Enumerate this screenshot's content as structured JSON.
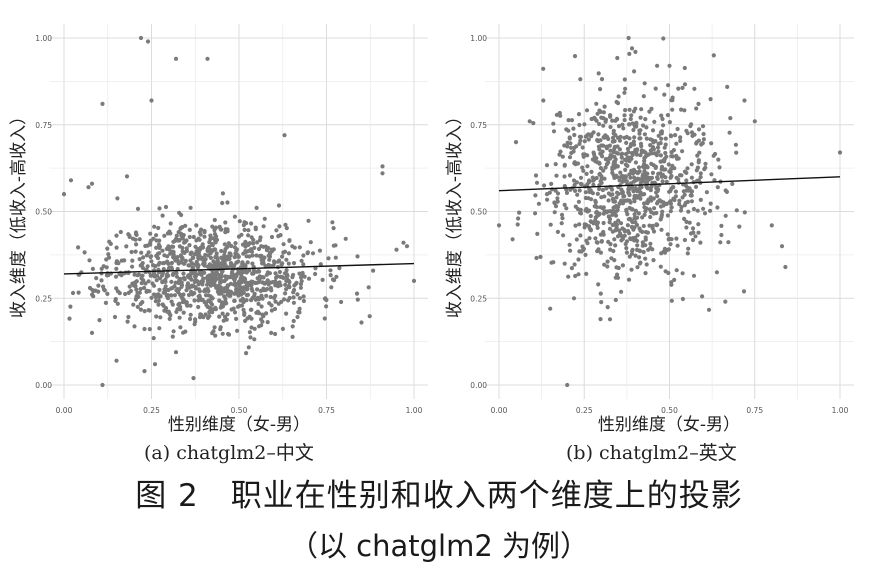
{
  "figure": {
    "title": "图 2　职业在性别和收入两个维度上的投影",
    "note": "（以 chatglm2 为例）"
  },
  "chart_data": [
    {
      "type": "scatter",
      "caption": "(a) chatglm2–中文",
      "xlabel": "性别维度（女-男）",
      "ylabel": "收入维度（低收入-高收入）",
      "xlim": [
        0,
        1
      ],
      "ylim": [
        0,
        1
      ],
      "xticks": [
        "0.00",
        "0.25",
        "0.50",
        "0.75",
        "1.00"
      ],
      "yticks": [
        "0.00",
        "0.25",
        "0.50",
        "0.75",
        "1.00"
      ],
      "grid": true,
      "point_color": "#7a7a7a",
      "trend_line": {
        "x": [
          0.0,
          1.0
        ],
        "y": [
          0.32,
          0.35
        ]
      },
      "cloud": {
        "n": 1150,
        "x_center": 0.42,
        "x_spread": 0.15,
        "y_center": 0.32,
        "y_spread": 0.075,
        "seed": 11
      },
      "points": [
        {
          "x": 0.22,
          "y": 1.0
        },
        {
          "x": 0.24,
          "y": 0.99
        },
        {
          "x": 0.32,
          "y": 0.94
        },
        {
          "x": 0.41,
          "y": 0.94
        },
        {
          "x": 0.11,
          "y": 0.81
        },
        {
          "x": 0.25,
          "y": 0.82
        },
        {
          "x": 0.63,
          "y": 0.72
        },
        {
          "x": 0.0,
          "y": 0.55
        },
        {
          "x": 0.02,
          "y": 0.59
        },
        {
          "x": 0.07,
          "y": 0.57
        },
        {
          "x": 0.08,
          "y": 0.58
        },
        {
          "x": 0.91,
          "y": 0.63
        },
        {
          "x": 0.91,
          "y": 0.61
        },
        {
          "x": 0.97,
          "y": 0.41
        },
        {
          "x": 0.98,
          "y": 0.4
        },
        {
          "x": 0.95,
          "y": 0.39
        },
        {
          "x": 1.0,
          "y": 0.3
        },
        {
          "x": 0.11,
          "y": 0.0
        },
        {
          "x": 0.23,
          "y": 0.04
        },
        {
          "x": 0.37,
          "y": 0.02
        },
        {
          "x": 0.15,
          "y": 0.07
        },
        {
          "x": 0.26,
          "y": 0.06
        },
        {
          "x": 0.08,
          "y": 0.15
        },
        {
          "x": 0.85,
          "y": 0.18
        }
      ]
    },
    {
      "type": "scatter",
      "caption": "(b) chatglm2–英文",
      "xlabel": "性别维度（女-男）",
      "ylabel": "收入维度（低收入-高收入）",
      "xlim": [
        0,
        1
      ],
      "ylim": [
        0,
        1
      ],
      "xticks": [
        "0.00",
        "0.25",
        "0.50",
        "0.75",
        "1.00"
      ],
      "yticks": [
        "0.00",
        "0.25",
        "0.50",
        "0.75",
        "1.00"
      ],
      "grid": true,
      "point_color": "#7a7a7a",
      "trend_line": {
        "x": [
          0.0,
          1.0
        ],
        "y": [
          0.56,
          0.6
        ]
      },
      "cloud": {
        "n": 1000,
        "x_center": 0.38,
        "x_spread": 0.12,
        "y_center": 0.58,
        "y_spread": 0.13,
        "seed": 29
      },
      "points": [
        {
          "x": 0.38,
          "y": 1.0
        },
        {
          "x": 0.39,
          "y": 0.97
        },
        {
          "x": 0.4,
          "y": 0.96
        },
        {
          "x": 0.5,
          "y": 0.92
        },
        {
          "x": 0.63,
          "y": 0.95
        },
        {
          "x": 0.13,
          "y": 0.82
        },
        {
          "x": 0.09,
          "y": 0.76
        },
        {
          "x": 0.05,
          "y": 0.7
        },
        {
          "x": 0.04,
          "y": 0.42
        },
        {
          "x": 0.0,
          "y": 0.46
        },
        {
          "x": 1.0,
          "y": 0.67
        },
        {
          "x": 0.8,
          "y": 0.46
        },
        {
          "x": 0.83,
          "y": 0.4
        },
        {
          "x": 0.84,
          "y": 0.34
        },
        {
          "x": 0.2,
          "y": 0.0
        },
        {
          "x": 0.15,
          "y": 0.22
        },
        {
          "x": 0.22,
          "y": 0.25
        },
        {
          "x": 0.75,
          "y": 0.76
        },
        {
          "x": 0.72,
          "y": 0.82
        }
      ]
    }
  ]
}
